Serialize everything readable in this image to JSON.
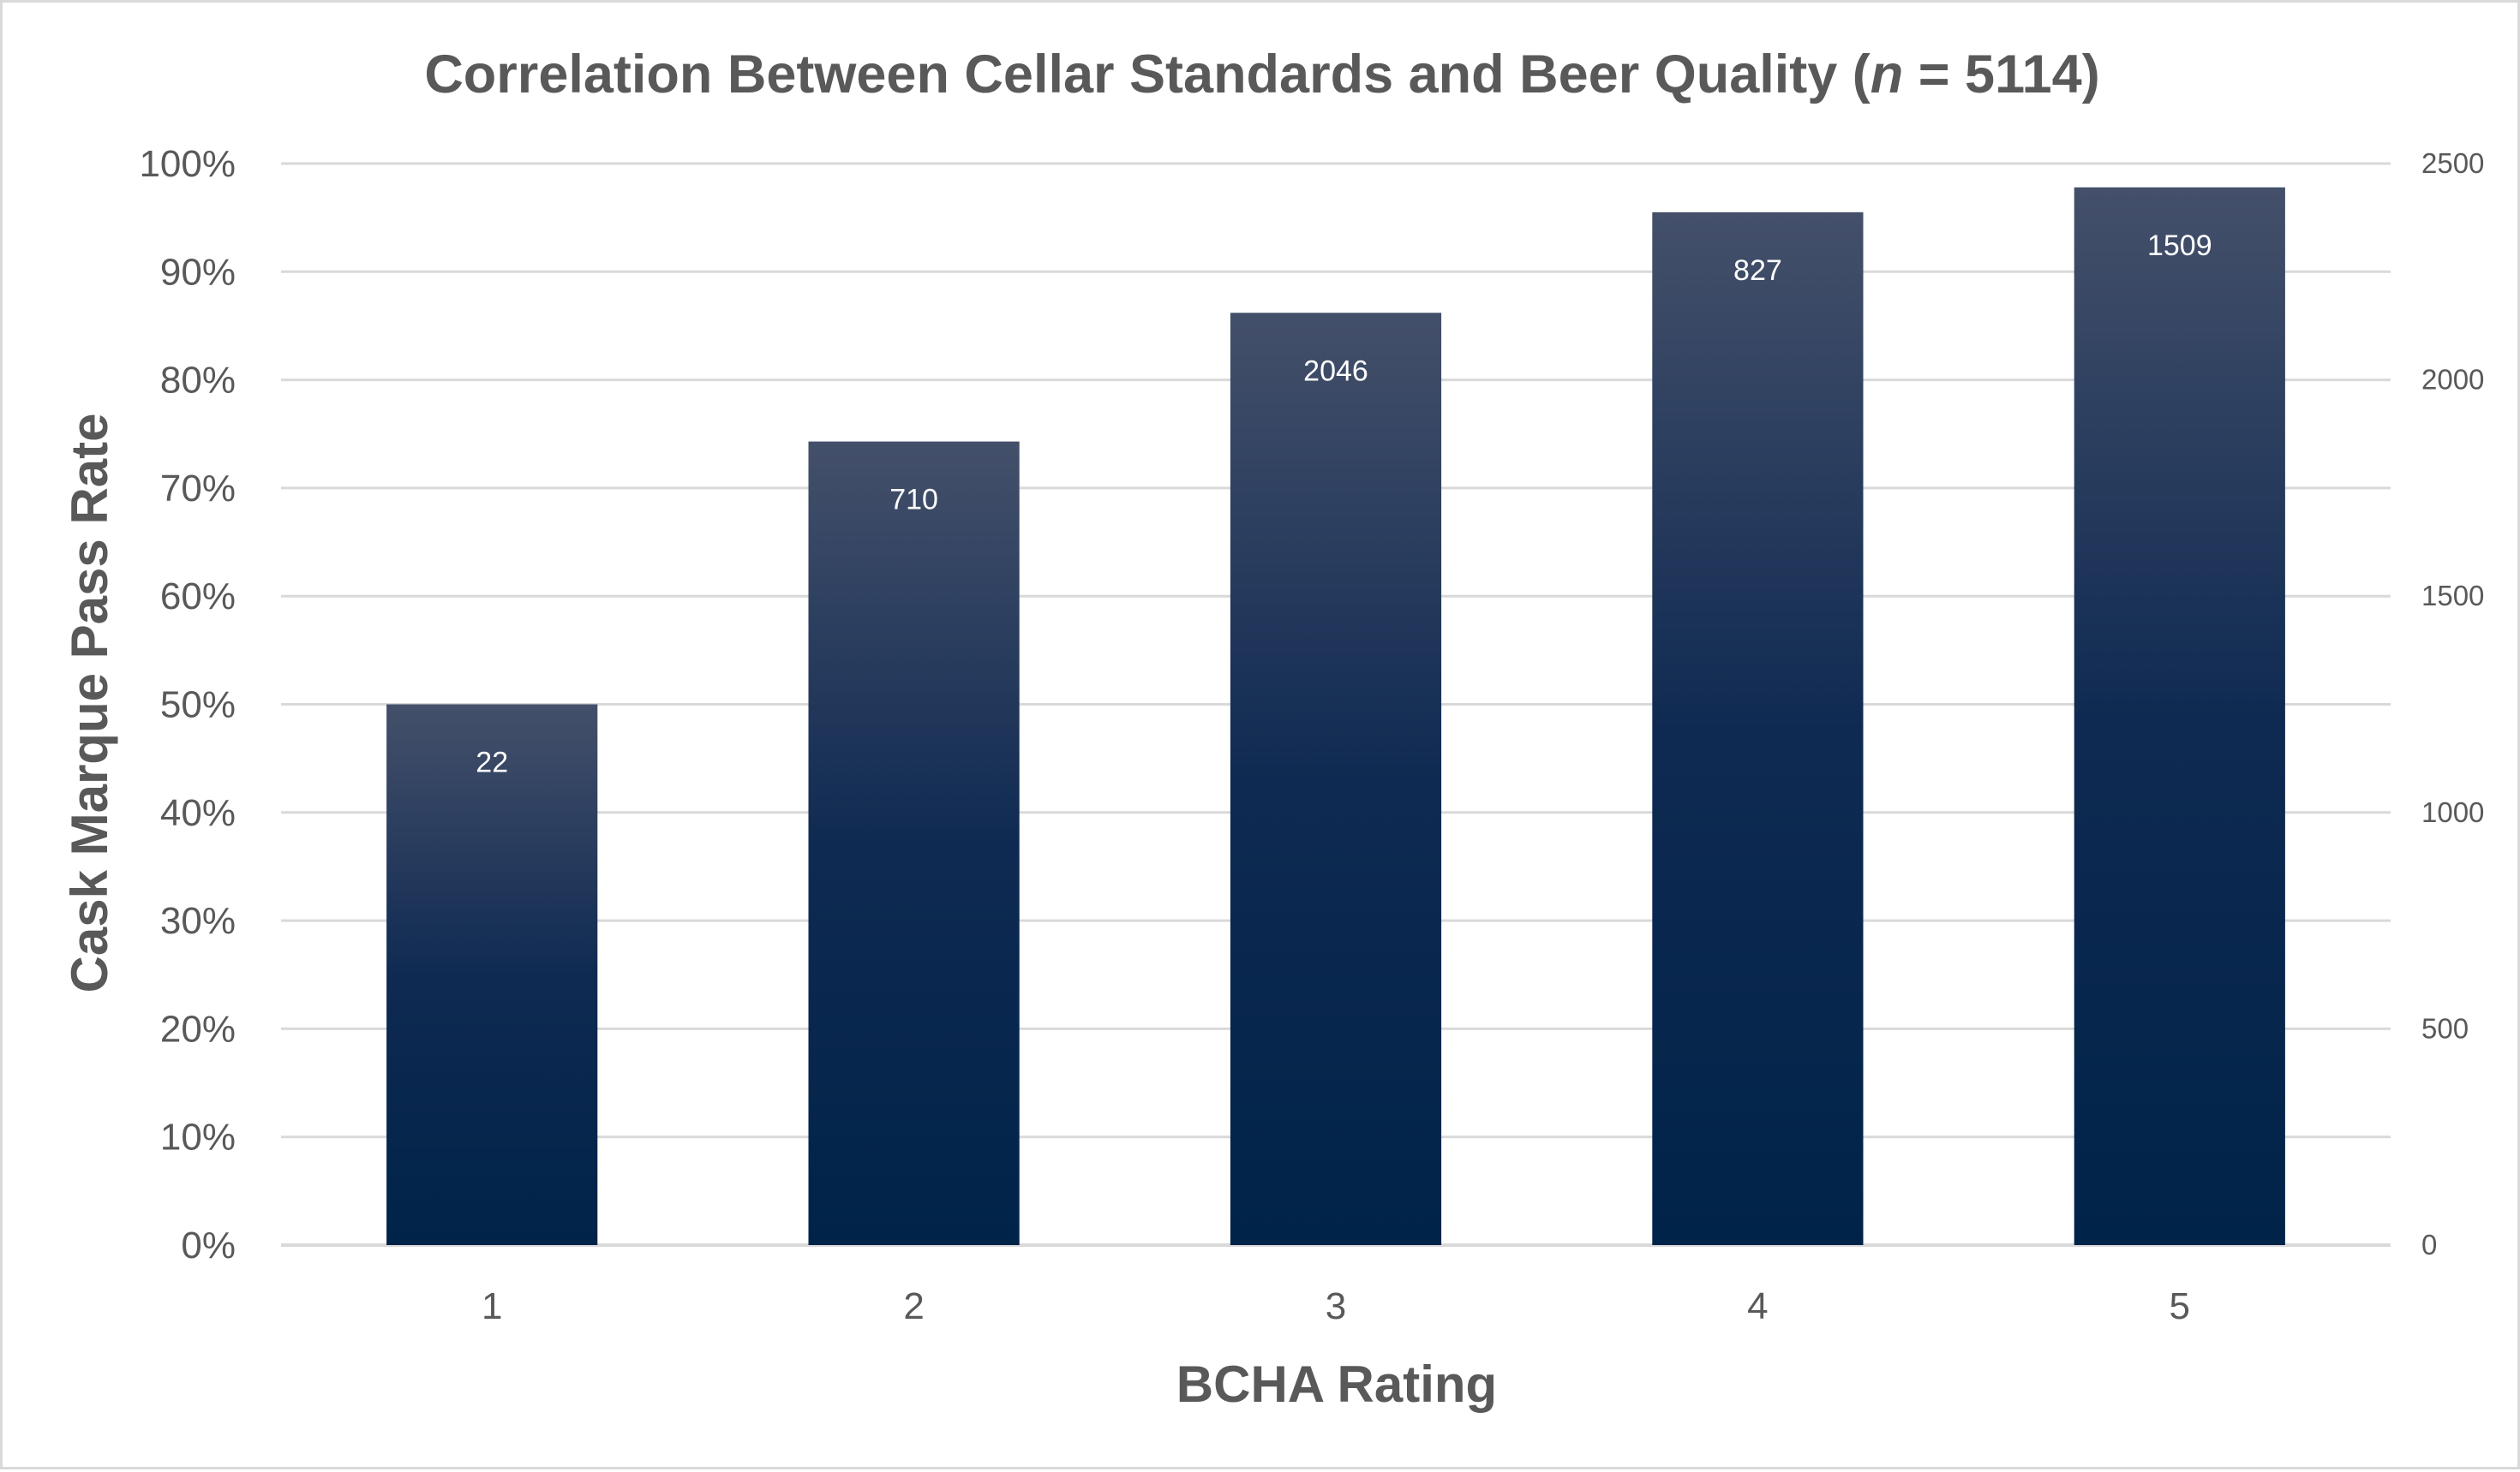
{
  "chart_data": {
    "type": "bar",
    "title": "Correlation Between Cellar Standards and Beer Quality (",
    "title_italic": "n",
    "title_suffix": " = 5114)",
    "xlabel": "BCHA Rating",
    "ylabel": "Cask Marque Pass Rate",
    "categories": [
      "1",
      "2",
      "3",
      "4",
      "5"
    ],
    "series": [
      {
        "values": [
          0.5,
          0.743,
          0.862,
          0.955,
          0.978
        ],
        "data_labels": [
          "22",
          "710",
          "2046",
          "827",
          "1509"
        ]
      }
    ],
    "ylim": [
      0,
      1
    ],
    "y_ticks": [
      "0%",
      "10%",
      "20%",
      "30%",
      "40%",
      "50%",
      "60%",
      "70%",
      "80%",
      "90%",
      "100%"
    ],
    "y2lim": [
      0,
      2500
    ],
    "y2_ticks": [
      "0",
      "500",
      "1000",
      "1500",
      "2000",
      "2500"
    ],
    "grid": true,
    "legend": "none",
    "colors": {
      "bar_top": "#44506a",
      "bar_mid": "#0f2a52",
      "bar_bottom": "#002349",
      "text": "#595959",
      "grid": "#d9d9d9",
      "label": "#ffffff"
    }
  }
}
